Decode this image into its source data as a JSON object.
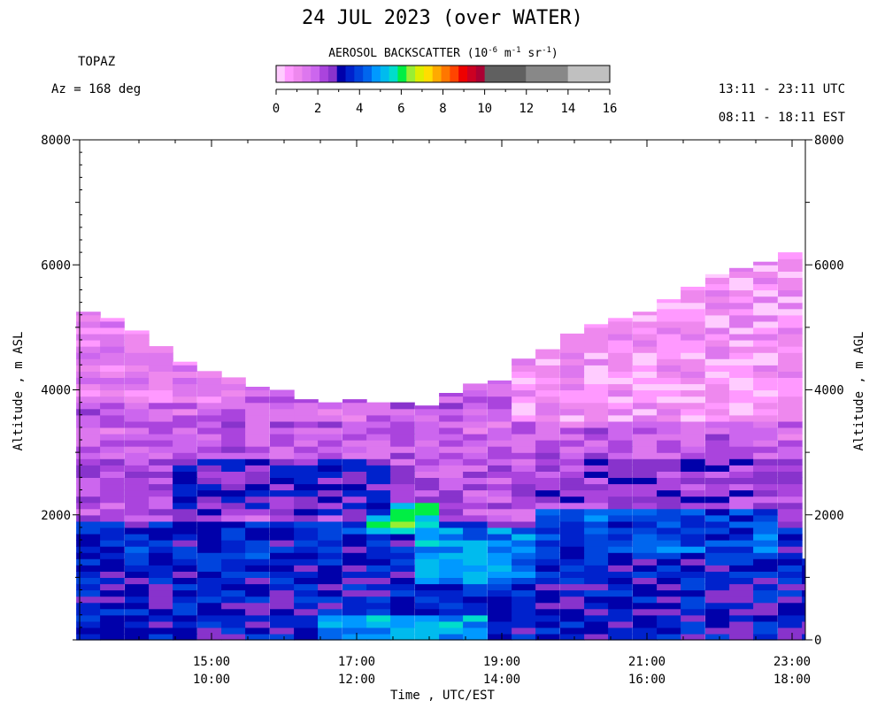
{
  "header": {
    "title": "24 JUL 2023 (over WATER)",
    "station": "TOPAZ",
    "azimuth": "Az = 168 deg",
    "utc_range": "13:11 - 23:11 UTC",
    "est_range": "08:11 - 18:11 EST"
  },
  "colorbar": {
    "title_prefix": "AEROSOL BACKSCATTER (10",
    "exp1": "-6",
    "mid1": " m",
    "exp2": "-1",
    "mid2": " sr",
    "exp3": "-1",
    "suffix": ")",
    "ticks": [
      0,
      2,
      4,
      6,
      8,
      10,
      12,
      14,
      16
    ],
    "tick_labels": [
      "0",
      "2",
      "4",
      "6",
      "8",
      "10",
      "12",
      "14",
      "16"
    ],
    "range": [
      0,
      16
    ],
    "fine_colors": [
      "#ffccff",
      "#ff99ff",
      "#ee88ee",
      "#dd77ee",
      "#cc66ee",
      "#aa44dd",
      "#8833cc",
      "#0000aa",
      "#0022cc",
      "#0044dd",
      "#0066ee",
      "#0099ff",
      "#00bbee",
      "#00ddcc",
      "#00ee44",
      "#99ee33",
      "#ddee00",
      "#ffdd00",
      "#ffaa00",
      "#ff7700",
      "#ff4400",
      "#ee0000",
      "#cc0022",
      "#aa0033"
    ],
    "coarse_colors": [
      "#606060",
      "#888888",
      "#c0c0c0"
    ]
  },
  "axes": {
    "ylabel_left": "Altitude , m ASL",
    "ylabel_right": "Altitude , m AGL",
    "xlabel": "Time , UTC/EST",
    "yticks_left": [
      "8000",
      "6000",
      "4000",
      "2000"
    ],
    "yticks_right": [
      "8000",
      "6000",
      "4000",
      "2000",
      "0"
    ],
    "xticks": [
      {
        "utc": "15:00",
        "est": "10:00"
      },
      {
        "utc": "17:00",
        "est": "12:00"
      },
      {
        "utc": "19:00",
        "est": "14:00"
      },
      {
        "utc": "21:00",
        "est": "16:00"
      },
      {
        "utc": "23:00",
        "est": "18:00"
      }
    ]
  },
  "chart_data": {
    "type": "heatmap",
    "title": "24 JUL 2023 (over WATER)",
    "xlabel": "Time , UTC/EST",
    "ylabel": "Altitude , m ASL",
    "xlim_utc_hours": [
      13.183,
      23.183
    ],
    "ylim": [
      0,
      8000
    ],
    "value_range": [
      0,
      16
    ],
    "units": "10^-6 m^-1 sr^-1",
    "grid": false,
    "scan_times_utc": [
      13.3,
      13.63,
      13.97,
      14.3,
      14.63,
      14.97,
      15.3,
      15.63,
      15.97,
      16.3,
      16.63,
      16.97,
      17.3,
      17.63,
      17.97,
      18.3,
      18.63,
      18.97,
      19.3,
      19.63,
      19.97,
      20.3,
      20.63,
      20.97,
      21.3,
      21.63,
      21.97,
      22.3,
      22.63,
      22.97
    ],
    "profile_top_altitudes_m": [
      5250,
      5150,
      4950,
      4700,
      4450,
      4300,
      4200,
      4050,
      4000,
      3850,
      3800,
      3850,
      3800,
      3800,
      3750,
      3950,
      4100,
      4150,
      4500,
      4650,
      4900,
      5050,
      5150,
      5250,
      5450,
      5650,
      5850,
      5950,
      6050,
      6200
    ],
    "last_profile_top_m": 1300,
    "bands": [
      {
        "time_utc": [
          13.1,
          23.2
        ],
        "alt_m": [
          0,
          900
        ],
        "value": 3.3
      },
      {
        "time_utc": [
          16.6,
          18.9
        ],
        "alt_m": [
          0,
          350
        ],
        "value": 5.0
      },
      {
        "time_utc": [
          13.1,
          17.8
        ],
        "alt_m": [
          1200,
          1900
        ],
        "value": 3.5
      },
      {
        "time_utc": [
          17.0,
          18.0
        ],
        "alt_m": [
          1700,
          2150
        ],
        "value": 5.6
      },
      {
        "time_utc": [
          17.8,
          19.6
        ],
        "alt_m": [
          900,
          1800
        ],
        "value": 4.8
      },
      {
        "time_utc": [
          19.6,
          22.9
        ],
        "alt_m": [
          1400,
          2100
        ],
        "value": 4.0
      },
      {
        "time_utc": [
          14.6,
          17.5
        ],
        "alt_m": [
          2000,
          3300
        ],
        "value": 3.0
      },
      {
        "time_utc": [
          19.6,
          22.9
        ],
        "alt_m": [
          2200,
          2900
        ],
        "value": 2.6
      },
      {
        "time_utc": [
          13.1,
          23.2
        ],
        "alt_m": [
          2900,
          4200
        ],
        "value": 1.9
      },
      {
        "time_utc": [
          19.0,
          23.2
        ],
        "alt_m": [
          3500,
          6200
        ],
        "value": 0.8
      },
      {
        "time_utc": [
          13.1,
          15.5
        ],
        "alt_m": [
          3800,
          5300
        ],
        "value": 1.2
      }
    ]
  }
}
